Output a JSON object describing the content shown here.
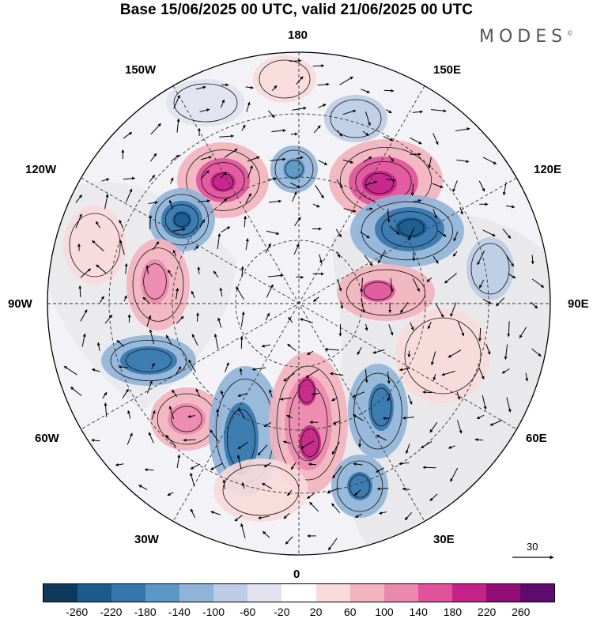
{
  "title": "Base 15/06/2025 00 UTC, valid 21/06/2025 00 UTC",
  "brand": "MODES",
  "brand_mark": "©",
  "longitude_labels": {
    "top": "180",
    "bottom": "0",
    "left": "90W",
    "right": "90E",
    "upper_left": "150W",
    "upper_right": "150E",
    "mid_upper_left": "120W",
    "mid_upper_right": "120E",
    "mid_lower_left": "60W",
    "mid_lower_right": "60E",
    "lower_left": "30W",
    "lower_right": "30E"
  },
  "reference_vector": "30",
  "colorbar": {
    "colors": [
      "#0d3a5c",
      "#1a5c8e",
      "#3477ad",
      "#5b97c6",
      "#8fb4d8",
      "#bcccE6",
      "#e2e2f0",
      "#ffffff",
      "#f9dada",
      "#f3b3be",
      "#ec88ad",
      "#e0529b",
      "#c42288",
      "#930c78",
      "#5e0a6e"
    ],
    "ticks": [
      "-260",
      "-220",
      "-180",
      "-140",
      "-100",
      "-60",
      "-20",
      "20",
      "60",
      "100",
      "140",
      "180",
      "220",
      "260"
    ]
  }
}
